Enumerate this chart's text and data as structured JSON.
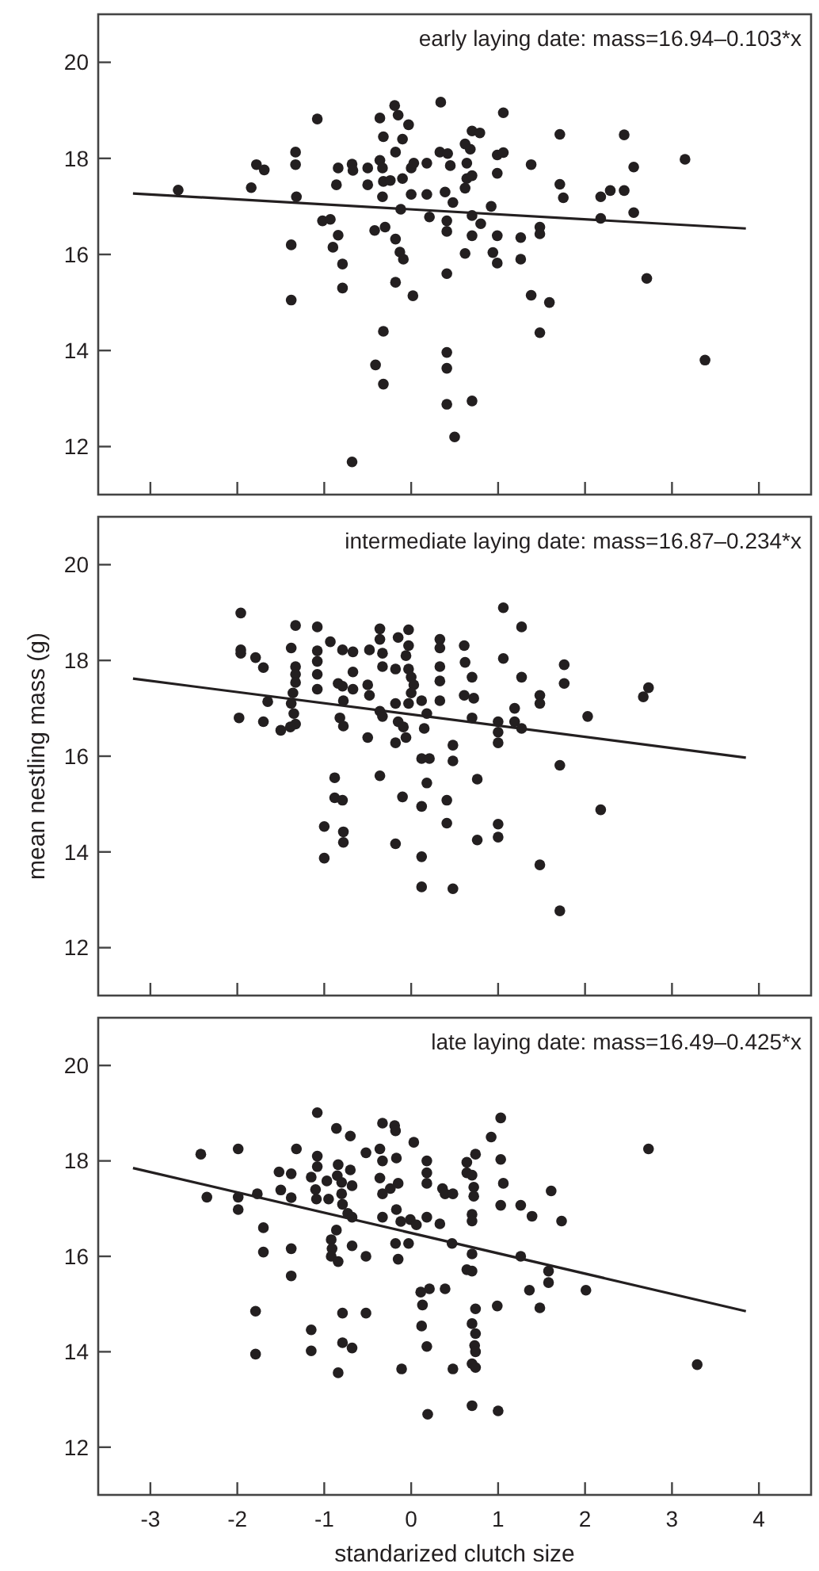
{
  "chart_data": [
    {
      "type": "scatter",
      "annotations": [
        "early laying date: mass=16.94–0.103*x"
      ],
      "xlim": [
        -3.6,
        4.6
      ],
      "xticks": [
        -3,
        -2,
        -1,
        0,
        1,
        2,
        3,
        4
      ],
      "ylim": [
        11,
        21
      ],
      "yticks": [
        12,
        14,
        16,
        18,
        20
      ],
      "tick_labels": "y",
      "marker": "circle",
      "series": [
        {
          "type": "scatter",
          "color": "#231f20",
          "x": [
            -2.68,
            -1.84,
            -1.78,
            -1.69,
            -1.33,
            -1.33,
            -1.32,
            -1.38,
            -1.38,
            -1.08,
            -1.02,
            -0.93,
            -0.84,
            -0.9,
            -0.79,
            -0.79,
            -0.86,
            -0.84,
            -0.68,
            -0.67,
            -0.5,
            -0.5,
            -0.36,
            -0.33,
            -0.32,
            -0.36,
            -0.19,
            -0.15,
            -0.03,
            -0.1,
            -0.18,
            -0.32,
            -0.24,
            -0.1,
            0,
            0.03,
            0.18,
            -0.33,
            0,
            0.18,
            -0.12,
            -0.42,
            -0.3,
            -0.18,
            -0.13,
            -0.09,
            -0.18,
            0.02,
            0.21,
            -0.32,
            -0.41,
            -0.32,
            -0.68,
            0.34,
            0.33,
            0.41,
            0.41,
            0.41,
            0.41,
            0.41,
            0.41,
            0.5,
            0.7,
            0.42,
            0.45,
            0.39,
            0.62,
            0.68,
            0.7,
            0.79,
            0.64,
            0.64,
            0.7,
            0.62,
            0.48,
            0.7,
            0.8,
            0.7,
            0.62,
            0.92,
            0.99,
            1.06,
            0.99,
            1.06,
            0.99,
            0.94,
            0.99,
            1.26,
            1.26,
            1.38,
            1.48,
            1.48,
            1.38,
            1.59,
            1.48,
            1.71,
            1.71,
            1.75,
            2.18,
            2.29,
            2.45,
            2.18,
            2.45,
            2.56,
            2.56,
            2.71,
            3.15,
            3.38
          ],
          "values": [
            17.34,
            17.39,
            17.87,
            17.76,
            18.13,
            17.87,
            17.2,
            16.2,
            15.05,
            18.82,
            16.7,
            16.73,
            16.4,
            16.15,
            15.8,
            15.3,
            17.45,
            17.8,
            17.88,
            17.75,
            17.8,
            17.45,
            17.96,
            17.8,
            18.45,
            18.84,
            19.1,
            18.9,
            18.7,
            18.4,
            18.13,
            17.52,
            17.54,
            17.58,
            17.8,
            17.9,
            17.9,
            17.2,
            17.25,
            17.25,
            16.94,
            16.5,
            16.57,
            16.32,
            16.05,
            15.9,
            15.42,
            15.14,
            16.78,
            14.4,
            13.7,
            13.3,
            11.68,
            19.17,
            18.13,
            16.7,
            16.48,
            15.6,
            13.96,
            13.63,
            12.88,
            12.2,
            12.95,
            18.1,
            17.85,
            17.3,
            18.3,
            18.19,
            18.57,
            18.53,
            17.9,
            17.58,
            17.64,
            17.38,
            17.08,
            16.81,
            16.64,
            16.39,
            16.02,
            17.0,
            18.07,
            18.12,
            17.69,
            18.95,
            16.39,
            16.04,
            15.82,
            16.35,
            15.9,
            17.87,
            16.57,
            16.43,
            15.15,
            15.0,
            14.37,
            18.5,
            17.46,
            17.18,
            17.2,
            17.33,
            17.33,
            16.75,
            18.49,
            17.82,
            16.87,
            15.5,
            17.98,
            13.8
          ]
        },
        {
          "type": "line",
          "color": "#231f20",
          "marker": "none",
          "x": [
            -3.2,
            3.85
          ],
          "values": [
            17.27,
            16.54
          ]
        }
      ]
    },
    {
      "type": "scatter",
      "ylabel": "mean nestling mass (g)",
      "annotations": [
        "intermediate laying date: mass=16.87–0.234*x"
      ],
      "xlim": [
        -3.6,
        4.6
      ],
      "xticks": [
        -3,
        -2,
        -1,
        0,
        1,
        2,
        3,
        4
      ],
      "ylim": [
        11,
        21
      ],
      "yticks": [
        12,
        14,
        16,
        18,
        20
      ],
      "tick_labels": "y",
      "marker": "circle",
      "series": [
        {
          "type": "scatter",
          "color": "#231f20",
          "x": [
            -1.96,
            -1.96,
            -1.96,
            -1.79,
            -1.7,
            -1.65,
            -1.98,
            -1.7,
            -1.5,
            -1.33,
            -1.38,
            -1.33,
            -1.33,
            -1.33,
            -1.36,
            -1.38,
            -1.35,
            -1.33,
            -1.39,
            -1.08,
            -1.08,
            -1.08,
            -1.08,
            -1.08,
            -0.93,
            -0.79,
            -0.67,
            -0.84,
            -0.79,
            -0.67,
            -0.67,
            -0.78,
            -0.82,
            -0.78,
            -0.48,
            -0.36,
            -0.36,
            -0.33,
            -0.33,
            -0.5,
            -0.48,
            -0.36,
            -0.33,
            -0.5,
            -0.15,
            -0.03,
            -0.03,
            -0.06,
            -0.18,
            -0.03,
            0,
            0.03,
            0,
            -0.18,
            -0.03,
            0.12,
            -0.15,
            -0.09,
            -0.06,
            -0.18,
            -0.36,
            -0.1,
            0.12,
            0.21,
            0.18,
            0.12,
            0.33,
            0.33,
            0.33,
            0.33,
            0.33,
            0.18,
            0.15,
            0.48,
            0.48,
            0.41,
            0.41,
            -0.88,
            -0.88,
            -0.79,
            -1.0,
            -0.78,
            -0.78,
            -1.0,
            -0.18,
            0.12,
            0.12,
            0.48,
            0.61,
            0.62,
            0.7,
            0.61,
            0.72,
            0.7,
            0.76,
            0.76,
            1.06,
            1.27,
            1.06,
            1.27,
            1.0,
            1.0,
            1.0,
            1.19,
            1.19,
            1.27,
            1.0,
            1.0,
            1.48,
            1.48,
            1.76,
            1.76,
            1.71,
            1.48,
            1.71,
            2.03,
            2.18,
            2.67,
            2.73
          ],
          "values": [
            18.99,
            18.22,
            18.15,
            18.06,
            17.85,
            17.14,
            16.8,
            16.72,
            16.54,
            18.73,
            18.26,
            17.87,
            17.71,
            17.54,
            17.32,
            17.1,
            16.89,
            16.67,
            16.61,
            18.7,
            18.2,
            17.98,
            17.71,
            17.4,
            18.39,
            18.22,
            18.18,
            17.52,
            17.46,
            17.76,
            17.4,
            17.16,
            16.8,
            16.63,
            18.22,
            18.66,
            18.44,
            18.15,
            17.87,
            17.49,
            17.27,
            16.94,
            16.83,
            16.39,
            18.48,
            18.64,
            18.31,
            18.1,
            17.82,
            17.82,
            17.65,
            17.49,
            17.32,
            17.1,
            17.1,
            17.16,
            16.72,
            16.61,
            16.39,
            16.28,
            15.59,
            15.15,
            15.95,
            15.95,
            15.44,
            14.95,
            18.44,
            18.26,
            17.87,
            17.57,
            17.16,
            16.89,
            16.58,
            16.23,
            15.9,
            15.08,
            14.6,
            15.55,
            15.13,
            15.08,
            14.53,
            14.42,
            14.2,
            13.87,
            14.17,
            13.9,
            13.27,
            13.23,
            18.31,
            17.96,
            17.65,
            17.27,
            17.21,
            16.8,
            15.52,
            14.25,
            19.1,
            18.7,
            18.04,
            17.65,
            16.72,
            16.5,
            16.28,
            17.0,
            16.72,
            16.58,
            14.58,
            14.31,
            17.27,
            17.1,
            17.91,
            17.52,
            15.81,
            13.73,
            12.77,
            16.83,
            14.88,
            17.24,
            17.43
          ]
        },
        {
          "type": "line",
          "color": "#231f20",
          "marker": "none",
          "x": [
            -3.2,
            3.85
          ],
          "values": [
            17.62,
            15.97
          ]
        }
      ]
    },
    {
      "type": "scatter",
      "xlabel": "standarized clutch size",
      "annotations": [
        "late laying date: mass=16.49–0.425*x"
      ],
      "xlim": [
        -3.6,
        4.6
      ],
      "xticks": [
        -3,
        -2,
        -1,
        0,
        1,
        2,
        3,
        4
      ],
      "ylim": [
        11,
        21
      ],
      "yticks": [
        12,
        14,
        16,
        18,
        20
      ],
      "marker": "circle",
      "series": [
        {
          "type": "scatter",
          "color": "#231f20",
          "x": [
            -2.42,
            -2.35,
            -1.99,
            -1.99,
            -1.99,
            -1.77,
            -1.7,
            -1.7,
            -1.79,
            -1.79,
            -1.32,
            -1.52,
            -1.38,
            -1.5,
            -1.38,
            -1.38,
            -1.38,
            -1.15,
            -1.08,
            -1.08,
            -1.08,
            -1.1,
            -1.09,
            -0.95,
            -0.97,
            -0.85,
            -0.84,
            -0.8,
            -0.86,
            -0.7,
            -0.7,
            -0.68,
            -0.8,
            -0.79,
            -0.73,
            -0.68,
            -0.86,
            -0.92,
            -0.91,
            -0.92,
            -0.84,
            -0.68,
            -0.52,
            -0.52,
            -0.36,
            -0.33,
            -0.17,
            -0.33,
            -0.19,
            -0.18,
            0.03,
            -0.36,
            -0.33,
            -0.24,
            -0.15,
            -0.33,
            -0.17,
            -0.12,
            -0.01,
            0.06,
            -0.18,
            -0.15,
            -0.03,
            0.18,
            0.18,
            0.18,
            0.18,
            0.36,
            0.39,
            0.33,
            0.47,
            -0.79,
            -0.52,
            -1.15,
            -1.15,
            -0.79,
            -0.68,
            -0.84,
            -0.11,
            0.11,
            0.21,
            0.39,
            0.13,
            0.12,
            0.18,
            0.19,
            0.48,
            0.48,
            0.64,
            0.64,
            0.7,
            0.74,
            0.72,
            0.72,
            0.7,
            0.7,
            0.7,
            0.64,
            0.7,
            0.74,
            0.7,
            0.74,
            0.73,
            0.74,
            0.7,
            0.74,
            0.7,
            1.0,
            0.92,
            1.03,
            1.03,
            1.06,
            1.03,
            0.99,
            1.26,
            1.39,
            1.26,
            1.36,
            1.48,
            1.58,
            1.58,
            1.61,
            1.73,
            2.01,
            2.73,
            3.29
          ],
          "values": [
            18.14,
            17.24,
            18.25,
            17.24,
            16.98,
            17.31,
            16.6,
            16.09,
            14.85,
            13.95,
            18.25,
            17.77,
            17.73,
            17.39,
            17.23,
            16.16,
            15.59,
            17.66,
            18.1,
            17.88,
            19.01,
            17.4,
            17.2,
            17.2,
            17.58,
            17.69,
            17.92,
            17.55,
            18.68,
            18.52,
            17.81,
            17.48,
            17.31,
            17.09,
            16.9,
            16.82,
            16.55,
            16.35,
            16.16,
            16.0,
            15.89,
            16.22,
            16.0,
            18.17,
            18.25,
            18.0,
            18.06,
            18.79,
            18.74,
            18.63,
            18.39,
            17.64,
            17.31,
            17.42,
            17.53,
            16.82,
            16.98,
            16.73,
            16.77,
            16.66,
            16.27,
            15.94,
            16.27,
            18.0,
            17.75,
            17.53,
            16.82,
            17.42,
            17.31,
            16.68,
            16.27,
            14.81,
            14.81,
            14.46,
            14.02,
            14.19,
            14.08,
            13.56,
            13.64,
            15.25,
            15.32,
            15.32,
            14.98,
            14.54,
            14.11,
            12.69,
            13.64,
            17.31,
            17.97,
            17.75,
            17.7,
            18.14,
            17.45,
            17.26,
            16.88,
            16.74,
            16.05,
            15.72,
            15.69,
            14.9,
            14.59,
            14.38,
            14.13,
            14.0,
            13.75,
            13.67,
            12.87,
            12.76,
            18.5,
            18.9,
            18.03,
            17.53,
            17.07,
            14.96,
            17.07,
            16.84,
            16.0,
            15.29,
            14.92,
            15.69,
            15.45,
            17.37,
            16.74,
            15.29,
            18.25,
            13.73
          ]
        },
        {
          "type": "line",
          "color": "#231f20",
          "marker": "none",
          "x": [
            -3.2,
            3.85
          ],
          "values": [
            17.85,
            14.85
          ]
        }
      ]
    }
  ]
}
